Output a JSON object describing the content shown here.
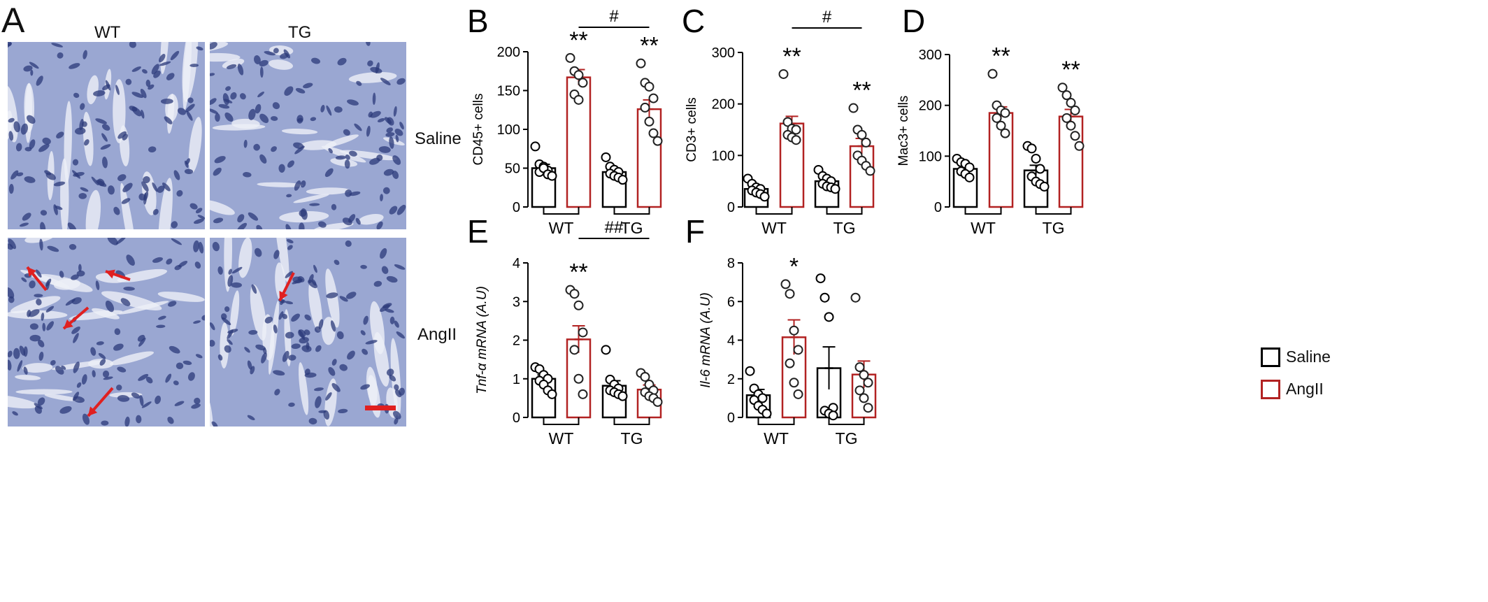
{
  "panel_a": {
    "letter": "A",
    "col_labels": [
      "WT",
      "TG"
    ],
    "row_labels": [
      "Saline",
      "AngII"
    ],
    "colors": {
      "tissue": "#9aa7d2",
      "nuclei": "#2b3a7a",
      "arrow": "#e02020",
      "scalebar": "#e02020"
    }
  },
  "legend": {
    "items": [
      {
        "label": "Saline",
        "color": "#000000"
      },
      {
        "label": "AngII",
        "color": "#b22222"
      }
    ]
  },
  "chart_data": [
    {
      "panel": "B",
      "type": "bar",
      "ylabel": "CD45+ cells",
      "ylabel_italic": false,
      "ylim": [
        0,
        200
      ],
      "yticks": [
        "0",
        "50",
        "100",
        "150",
        "200"
      ],
      "groups": [
        "WT",
        "TG"
      ],
      "series": [
        {
          "name": "Saline",
          "color": "#000000",
          "values": [
            50,
            45
          ],
          "sem": [
            5,
            5
          ],
          "points": [
            [
              78,
              55,
              52,
              47,
              45,
              50,
              42,
              40
            ],
            [
              64,
              52,
              48,
              45,
              43,
              40,
              38,
              35
            ]
          ]
        },
        {
          "name": "AngII",
          "color": "#b22222",
          "values": [
            167,
            126
          ],
          "sem": [
            10,
            12
          ],
          "points": [
            [
              192,
              175,
              170,
              160,
              145,
              138
            ],
            [
              185,
              160,
              155,
              140,
              128,
              110,
              95,
              85
            ]
          ]
        }
      ],
      "stars": [
        "",
        "**",
        "",
        "**"
      ],
      "bracket": {
        "label": "#",
        "from": 1,
        "to": 3
      }
    },
    {
      "panel": "C",
      "type": "bar",
      "ylabel": "CD3+ cells",
      "ylabel_italic": false,
      "ylim": [
        0,
        300
      ],
      "yticks": [
        "0",
        "100",
        "200",
        "300"
      ],
      "groups": [
        "WT",
        "TG"
      ],
      "series": [
        {
          "name": "Saline",
          "color": "#000000",
          "values": [
            35,
            50
          ],
          "sem": [
            6,
            6
          ],
          "points": [
            [
              55,
              45,
              38,
              35,
              32,
              28,
              25,
              20
            ],
            [
              72,
              60,
              55,
              50,
              45,
              40,
              38,
              35
            ]
          ]
        },
        {
          "name": "AngII",
          "color": "#b22222",
          "values": [
            162,
            118
          ],
          "sem": [
            14,
            15
          ],
          "points": [
            [
              258,
              165,
              152,
              150,
              140,
              135,
              130
            ],
            [
              192,
              150,
              140,
              125,
              100,
              90,
              80,
              70
            ]
          ]
        }
      ],
      "stars": [
        "",
        "**",
        "",
        "**"
      ],
      "bracket": {
        "label": "#",
        "from": 1,
        "to": 3
      }
    },
    {
      "panel": "D",
      "type": "bar",
      "ylabel": "Mac3+ cells",
      "ylabel_italic": false,
      "ylim": [
        0,
        300
      ],
      "yticks": [
        "0",
        "100",
        "200",
        "300"
      ],
      "groups": [
        "WT",
        "TG"
      ],
      "series": [
        {
          "name": "Saline",
          "color": "#000000",
          "values": [
            75,
            72
          ],
          "sem": [
            6,
            10
          ],
          "points": [
            [
              95,
              88,
              85,
              78,
              70,
              65,
              58
            ],
            [
              120,
              115,
              95,
              75,
              60,
              50,
              45,
              40
            ]
          ]
        },
        {
          "name": "AngII",
          "color": "#b22222",
          "values": [
            185,
            178
          ],
          "sem": [
            12,
            14
          ],
          "points": [
            [
              262,
              200,
              190,
              185,
              175,
              160,
              145
            ],
            [
              235,
              220,
              205,
              190,
              175,
              160,
              140,
              120
            ]
          ]
        }
      ],
      "stars": [
        "",
        "**",
        "",
        "**"
      ],
      "bracket": null
    },
    {
      "panel": "E",
      "type": "bar",
      "ylabel": "Tnf-α mRNA (A.U)",
      "ylabel_italic": true,
      "ylim": [
        0,
        4
      ],
      "yticks": [
        "0",
        "1",
        "2",
        "3",
        "4"
      ],
      "groups": [
        "WT",
        "TG"
      ],
      "series": [
        {
          "name": "Saline",
          "color": "#000000",
          "values": [
            1.0,
            0.82
          ],
          "sem": [
            0.1,
            0.13
          ],
          "points": [
            [
              1.3,
              1.25,
              1.1,
              1.0,
              0.95,
              0.85,
              0.7,
              0.6
            ],
            [
              1.75,
              0.98,
              0.85,
              0.75,
              0.7,
              0.65,
              0.6,
              0.55
            ]
          ]
        },
        {
          "name": "AngII",
          "color": "#b22222",
          "values": [
            2.02,
            0.72
          ],
          "sem": [
            0.35,
            0.12
          ],
          "points": [
            [
              3.3,
              3.2,
              2.9,
              2.2,
              1.75,
              1.0,
              0.6
            ],
            [
              1.15,
              1.05,
              0.85,
              0.7,
              0.65,
              0.55,
              0.5,
              0.4
            ]
          ]
        }
      ],
      "stars": [
        "",
        "**",
        "",
        ""
      ],
      "bracket": {
        "label": "##",
        "from": 1,
        "to": 3
      }
    },
    {
      "panel": "F",
      "type": "bar",
      "ylabel": "Il-6 mRNA (A.U)",
      "ylabel_italic": true,
      "ylim": [
        0,
        8
      ],
      "yticks": [
        "0",
        "2",
        "4",
        "6",
        "8"
      ],
      "groups": [
        "WT",
        "TG"
      ],
      "series": [
        {
          "name": "Saline",
          "color": "#000000",
          "values": [
            1.15,
            2.55
          ],
          "sem": [
            0.3,
            1.1
          ],
          "points": [
            [
              2.4,
              1.5,
              1.2,
              1.0,
              0.9,
              0.6,
              0.4,
              0.2
            ],
            [
              7.2,
              6.2,
              5.2,
              0.5,
              0.35,
              0.2,
              0.1
            ]
          ]
        },
        {
          "name": "AngII",
          "color": "#b22222",
          "values": [
            4.15,
            2.22
          ],
          "sem": [
            0.9,
            0.7
          ],
          "points": [
            [
              6.9,
              6.4,
              4.5,
              3.5,
              2.8,
              1.8,
              1.2
            ],
            [
              6.2,
              2.6,
              2.2,
              1.8,
              1.4,
              1.0,
              0.5
            ]
          ]
        }
      ],
      "stars": [
        "",
        "*",
        "",
        ""
      ],
      "bracket": null
    }
  ]
}
